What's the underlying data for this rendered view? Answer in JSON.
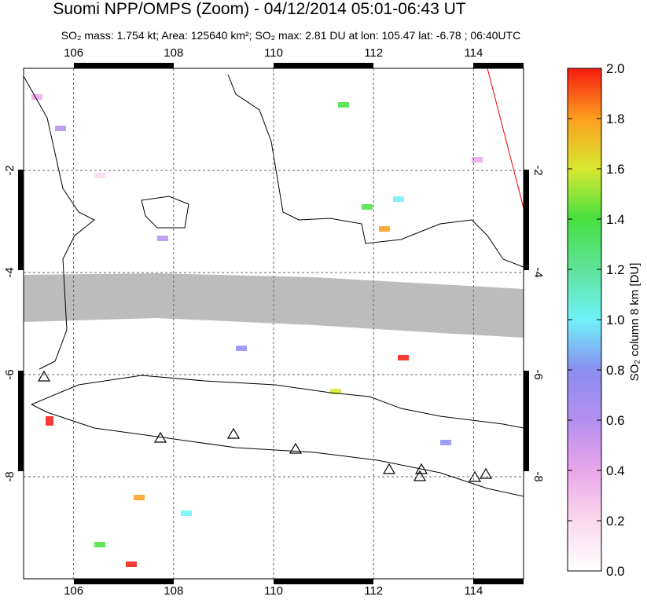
{
  "chart_data": {
    "type": "map",
    "title": "Suomi NPP/OMPS (Zoom) - 04/12/2014 05:01-06:43 UT",
    "subtitle": "SO₂ mass: 1.754 kt; Area: 125640 km²; SO₂ max: 2.81 DU at lon: 105.47 lat: -6.78 ; 06:40UTC",
    "xlim": [
      105,
      115
    ],
    "xticks": [
      106,
      108,
      110,
      112,
      114
    ],
    "ylim": [
      -10,
      0
    ],
    "yticks": [
      -2,
      -4,
      -6,
      -8
    ],
    "grid": true,
    "colorbar": {
      "label": "SO₂ column 8 km [DU]",
      "lim": [
        0,
        2
      ],
      "ticks": [
        {
          "value": 0,
          "label": "0.0"
        },
        0.2,
        0.4,
        0.6,
        0.8,
        {
          "value": 1,
          "label": "1.0"
        },
        1.2,
        1.4,
        1.6,
        1.8,
        {
          "value": 2,
          "label": "2.0"
        }
      ]
    }
  }
}
